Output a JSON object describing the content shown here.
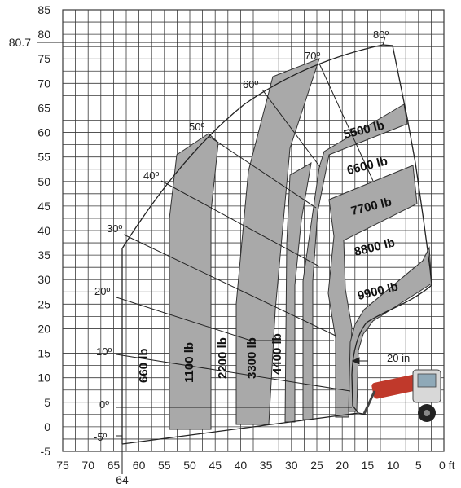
{
  "chart_data": {
    "type": "load-chart",
    "x_ticks": [
      "75",
      "70",
      "65",
      "60",
      "55",
      "50",
      "45",
      "40",
      "35",
      "30",
      "25",
      "20",
      "15",
      "10",
      "5",
      "0 ft"
    ],
    "y_ticks": [
      "85",
      "80",
      "75",
      "70",
      "65",
      "60",
      "55",
      "50",
      "45",
      "40",
      "35",
      "30",
      "25",
      "20",
      "15",
      "10",
      "5",
      "0",
      "-5"
    ],
    "xlim": [
      75,
      0
    ],
    "ylim": [
      -5,
      85
    ],
    "grid": true,
    "extra_labels": {
      "max_height": "80.7",
      "max_reach": "64",
      "offset": "20 in"
    },
    "angles": [
      {
        "label": "80º",
        "deg": 80
      },
      {
        "label": "70º",
        "deg": 70
      },
      {
        "label": "60º",
        "deg": 60
      },
      {
        "label": "50º",
        "deg": 50
      },
      {
        "label": "40º",
        "deg": 40
      },
      {
        "label": "30º",
        "deg": 30
      },
      {
        "label": "20º",
        "deg": 20
      },
      {
        "label": "10º",
        "deg": 10
      },
      {
        "label": "0º",
        "deg": 0
      },
      {
        "label": "-5º",
        "deg": -5
      }
    ],
    "zones": [
      {
        "label": "660 lb",
        "orientation": "vertical"
      },
      {
        "label": "1100 lb",
        "orientation": "vertical",
        "shaded": true
      },
      {
        "label": "2200 lb",
        "orientation": "vertical"
      },
      {
        "label": "3300 lb",
        "orientation": "vertical",
        "shaded": true
      },
      {
        "label": "4400 lb",
        "orientation": "vertical"
      },
      {
        "label": "5500 lb",
        "orientation": "angled",
        "shaded": true
      },
      {
        "label": "6600 lb",
        "orientation": "angled"
      },
      {
        "label": "7700 lb",
        "orientation": "angled",
        "shaded": true
      },
      {
        "label": "8800 lb",
        "orientation": "angled"
      },
      {
        "label": "9900 lb",
        "orientation": "angled",
        "shaded": true
      }
    ],
    "colors": {
      "shade": "#a9a9a9",
      "grid": "#3a3a3a",
      "machine": "#c0392b"
    }
  }
}
